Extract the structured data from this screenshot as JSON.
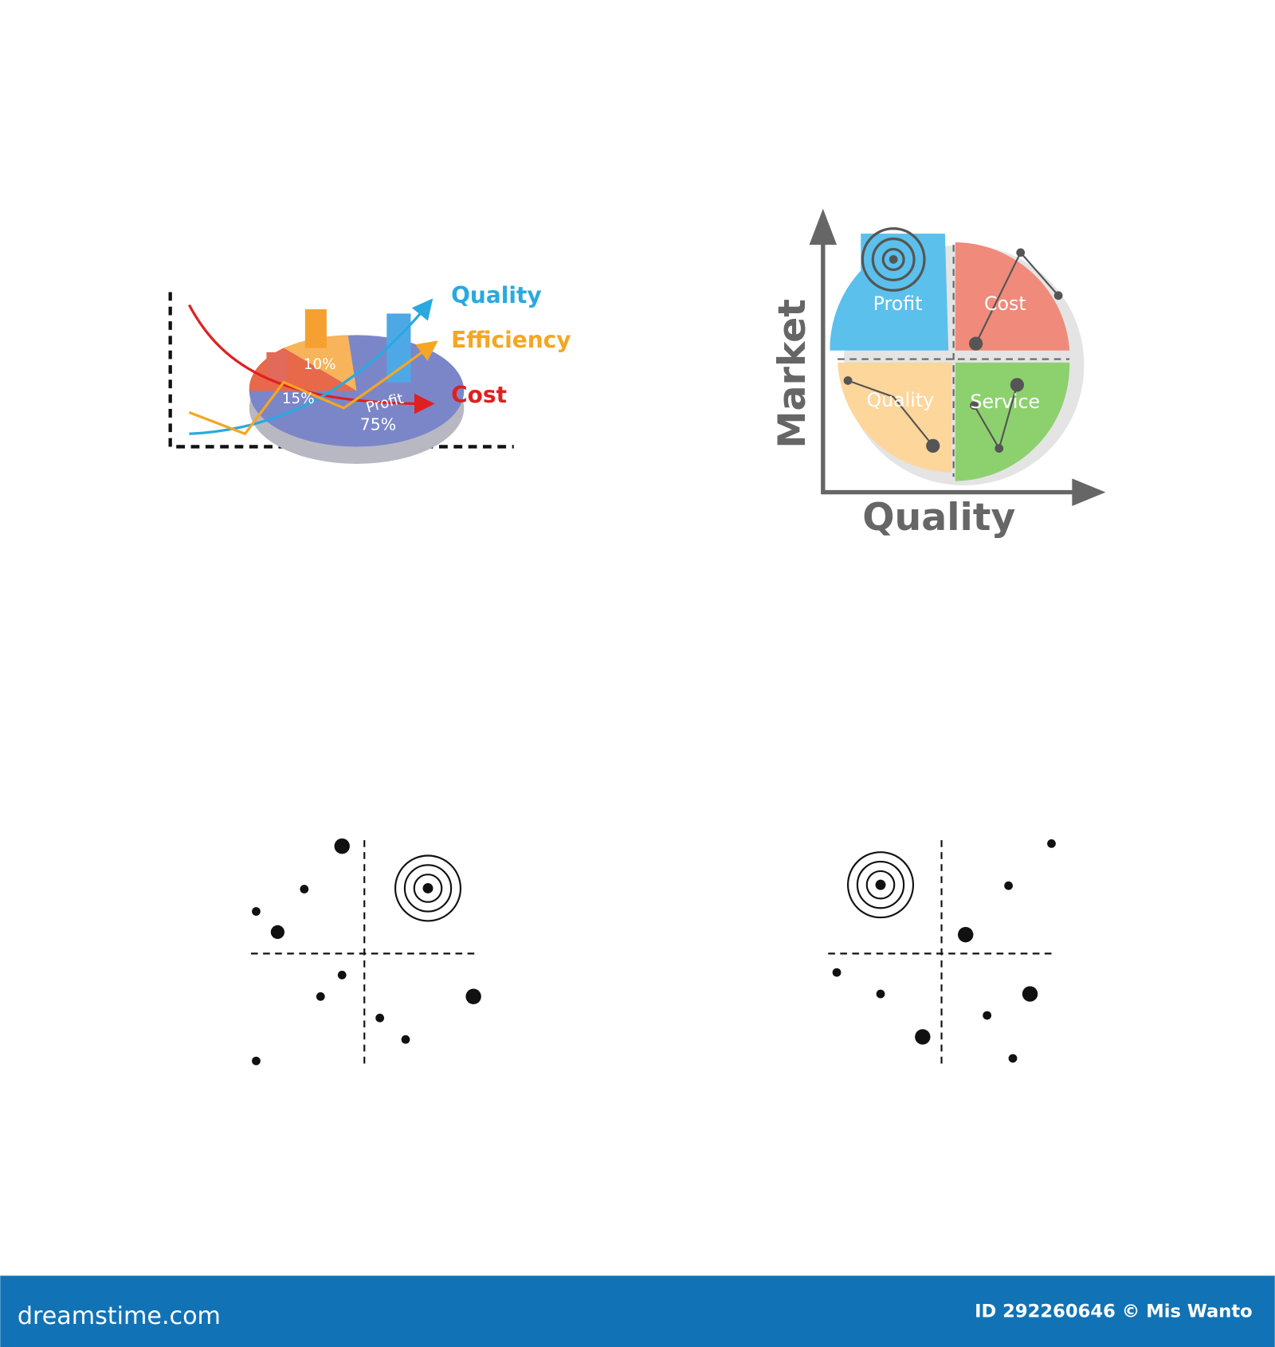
{
  "icon_1": {
    "legend": [
      "Quality",
      "Efficiency",
      "Cost"
    ],
    "slices": [
      "10%",
      "15%",
      "Profit",
      "75%"
    ]
  },
  "icon_2": {
    "quadrants": [
      "Profit",
      "Cost",
      "Quality",
      "Service"
    ],
    "y_axis": "Market",
    "x_axis": "Quality"
  },
  "footer": {
    "brand": "dreamstime.com",
    "credit": "ID 292260646 © Mis Wanto"
  }
}
